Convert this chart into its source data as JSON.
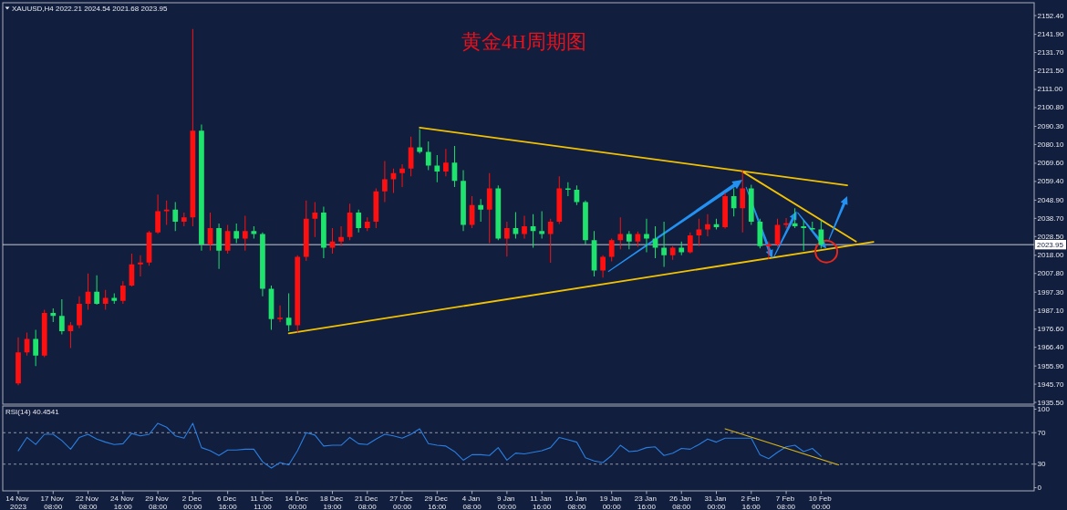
{
  "chart_data": [
    {
      "type": "candlestick",
      "title": "黄金4H周期图",
      "annotations": [
        "XAUUSD,H4 2022.21 2024.54 2021.68 2023.95"
      ],
      "categories": [
        null,
        null,
        null,
        null,
        null,
        null,
        null,
        null,
        null,
        null,
        null,
        null,
        null,
        null,
        null,
        null,
        null,
        null,
        null,
        null,
        null,
        null,
        null,
        null,
        null,
        null,
        null,
        null,
        null,
        null,
        null,
        null,
        null,
        null,
        null,
        null,
        null,
        null,
        null,
        null,
        null,
        null,
        null,
        null,
        null,
        null,
        null,
        null,
        null,
        null,
        null,
        null,
        null,
        null,
        null,
        null,
        null,
        null,
        null,
        null,
        null,
        null,
        null,
        null,
        null,
        null,
        null,
        null,
        null,
        null,
        null,
        null,
        null,
        null,
        null,
        null,
        null,
        null,
        null,
        null,
        null,
        null,
        null,
        null,
        null,
        null,
        null,
        null,
        null,
        null,
        null,
        null,
        null,
        null,
        null,
        null,
        null,
        null,
        null,
        null,
        null,
        null,
        null,
        null,
        null,
        null,
        null,
        null,
        null,
        null,
        null,
        null,
        null,
        null,
        null,
        null,
        null
      ],
      "ohlc": [
        [
          1946.2,
          1972.0,
          1945.1,
          1963.5
        ],
        [
          1963.5,
          1974.6,
          1961.8,
          1971.1
        ],
        [
          1971.1,
          1976.2,
          1955.8,
          1961.8
        ],
        [
          1961.8,
          1987.4,
          1960.9,
          1985.7
        ],
        [
          1985.7,
          1988.2,
          1980.5,
          1984.0
        ],
        [
          1984.0,
          1993.3,
          1973.7,
          1975.4
        ],
        [
          1975.4,
          1980.5,
          1965.9,
          1978.8
        ],
        [
          1978.8,
          1995.0,
          1977.1,
          1990.8
        ],
        [
          1990.8,
          2007.8,
          1987.4,
          1997.6
        ],
        [
          1997.6,
          2006.7,
          1990.3,
          1990.8
        ],
        [
          1990.8,
          1998.6,
          1987.4,
          1994.1
        ],
        [
          1994.1,
          1996.7,
          1990.8,
          1992.5
        ],
        [
          1992.5,
          2003.5,
          1990.8,
          2001.0
        ],
        [
          2001.0,
          2018.9,
          2000.5,
          2012.9
        ],
        [
          2012.9,
          2018.0,
          2006.1,
          2013.9
        ],
        [
          2013.9,
          2031.6,
          2012.1,
          2030.8
        ],
        [
          2030.8,
          2052.0,
          2030.0,
          2042.7
        ],
        [
          2042.7,
          2048.7,
          2035.0,
          2043.6
        ],
        [
          2043.6,
          2047.8,
          2031.6,
          2036.8
        ],
        [
          2036.8,
          2041.9,
          2034.2,
          2039.3
        ],
        [
          2039.3,
          2144.9,
          2034.2,
          2087.9
        ],
        [
          2087.9,
          2091.3,
          2020.6,
          2024.0
        ],
        [
          2024.0,
          2041.9,
          2020.6,
          2033.3
        ],
        [
          2033.3,
          2035.8,
          2010.3,
          2020.6
        ],
        [
          2020.6,
          2035.0,
          2018.9,
          2031.6
        ],
        [
          2031.6,
          2035.8,
          2024.8,
          2027.4
        ],
        [
          2027.4,
          2040.2,
          2020.6,
          2031.6
        ],
        [
          2031.6,
          2034.2,
          2027.4,
          2029.9
        ],
        [
          2029.9,
          2030.8,
          1995.0,
          1999.2
        ],
        [
          1999.2,
          2001.0,
          1976.2,
          1982.2
        ],
        [
          1982.2,
          1989.9,
          1980.5,
          1983.0
        ],
        [
          1983.0,
          1996.7,
          1975.4,
          1978.8
        ],
        [
          1978.8,
          2018.0,
          1974.5,
          2017.1
        ],
        [
          2017.1,
          2048.7,
          2014.8,
          2038.5
        ],
        [
          2038.5,
          2047.8,
          2028.2,
          2041.9
        ],
        [
          2041.9,
          2045.3,
          2016.3,
          2022.3
        ],
        [
          2022.3,
          2033.3,
          2018.9,
          2025.7
        ],
        [
          2025.7,
          2034.2,
          2023.1,
          2028.2
        ],
        [
          2028.2,
          2046.9,
          2026.5,
          2041.9
        ],
        [
          2041.9,
          2043.6,
          2030.8,
          2033.3
        ],
        [
          2033.3,
          2039.3,
          2031.6,
          2036.8
        ],
        [
          2036.8,
          2055.5,
          2033.3,
          2053.8
        ],
        [
          2053.8,
          2070.8,
          2047.8,
          2060.6
        ],
        [
          2060.6,
          2066.6,
          2052.9,
          2064.0
        ],
        [
          2064.0,
          2069.1,
          2056.3,
          2066.6
        ],
        [
          2066.6,
          2084.5,
          2062.3,
          2078.5
        ],
        [
          2078.5,
          2088.7,
          2075.1,
          2075.9
        ],
        [
          2075.9,
          2081.9,
          2065.7,
          2068.3
        ],
        [
          2068.3,
          2074.2,
          2058.9,
          2064.9
        ],
        [
          2064.9,
          2077.6,
          2062.3,
          2070.0
        ],
        [
          2070.0,
          2079.3,
          2056.3,
          2059.7
        ],
        [
          2059.7,
          2065.7,
          2031.6,
          2035.0
        ],
        [
          2035.0,
          2051.2,
          2033.3,
          2046.1
        ],
        [
          2046.1,
          2049.5,
          2036.8,
          2043.6
        ],
        [
          2043.6,
          2064.0,
          2024.8,
          2055.5
        ],
        [
          2055.5,
          2057.2,
          2026.5,
          2027.4
        ],
        [
          2027.4,
          2036.8,
          2017.2,
          2033.3
        ],
        [
          2033.3,
          2042.2,
          2027.4,
          2029.9
        ],
        [
          2029.9,
          2040.2,
          2027.4,
          2034.2
        ],
        [
          2034.2,
          2041.0,
          2022.3,
          2031.6
        ],
        [
          2031.6,
          2042.7,
          2027.4,
          2029.9
        ],
        [
          2029.9,
          2038.5,
          2013.8,
          2036.8
        ],
        [
          2036.8,
          2062.3,
          2035.5,
          2055.5
        ],
        [
          2055.5,
          2058.9,
          2051.2,
          2054.7
        ],
        [
          2054.7,
          2057.2,
          2046.1,
          2047.8
        ],
        [
          2047.8,
          2048.7,
          2024.0,
          2026.5
        ],
        [
          2026.5,
          2031.6,
          2006.1,
          2009.5
        ],
        [
          2009.5,
          2018.0,
          2005.5,
          2017.1
        ],
        [
          2017.1,
          2027.4,
          2014.6,
          2026.5
        ],
        [
          2026.5,
          2039.3,
          2021.4,
          2029.9
        ],
        [
          2029.9,
          2031.6,
          2021.4,
          2025.7
        ],
        [
          2025.7,
          2031.3,
          2022.7,
          2029.9
        ],
        [
          2029.9,
          2038.5,
          2019.7,
          2027.4
        ],
        [
          2027.4,
          2034.2,
          2016.3,
          2022.3
        ],
        [
          2022.3,
          2036.8,
          2011.5,
          2018.0
        ],
        [
          2018.0,
          2023.1,
          2015.4,
          2022.3
        ],
        [
          2022.3,
          2025.7,
          2018.0,
          2019.7
        ],
        [
          2019.7,
          2030.8,
          2019.0,
          2029.1
        ],
        [
          2029.1,
          2038.5,
          2023.1,
          2032.5
        ],
        [
          2032.5,
          2041.0,
          2028.6,
          2035.4
        ],
        [
          2035.4,
          2038.5,
          2032.5,
          2033.7
        ],
        [
          2033.7,
          2052.9,
          2033.0,
          2051.2
        ],
        [
          2051.2,
          2055.5,
          2039.8,
          2044.4
        ],
        [
          2044.4,
          2065.7,
          2030.8,
          2055.5
        ],
        [
          2055.5,
          2057.5,
          2035.0,
          2036.8
        ],
        [
          2036.8,
          2038.5,
          2021.8,
          2023.1
        ],
        [
          2023.1,
          2025.7,
          2015.9,
          2024.0
        ],
        [
          2024.0,
          2038.5,
          2022.7,
          2035.0
        ],
        [
          2035.0,
          2038.9,
          2033.0,
          2035.9
        ],
        [
          2035.9,
          2044.4,
          2033.3,
          2034.2
        ],
        [
          2034.2,
          2037.6,
          2020.6,
          2033.3
        ],
        [
          2033.3,
          2036.8,
          2032.0,
          2032.5
        ],
        [
          2032.5,
          2037.6,
          2021.7,
          2023.95
        ],
        null,
        null,
        null,
        null,
        null,
        null,
        null,
        null,
        null,
        null,
        null,
        null,
        null,
        null,
        null,
        null,
        null,
        null,
        null,
        null,
        null,
        null,
        null,
        null
      ],
      "colors": [
        "#ff1010",
        "#ff1010",
        "#1ee36c",
        "#ff1010",
        "#1ee36c",
        "#1ee36c",
        "#ff1010",
        "#ff1010",
        "#ff1010",
        "#1ee36c",
        "#ff1010",
        "#1ee36c",
        "#ff1010",
        "#ff1010",
        "#ff1010",
        "#ff1010",
        "#ff1010",
        "#ff1010",
        "#1ee36c",
        "#ff1010",
        "#ff1010",
        "#1ee36c",
        "#ff1010",
        "#1ee36c",
        "#ff1010",
        "#1ee36c",
        "#ff1010",
        "#1ee36c",
        "#1ee36c",
        "#1ee36c",
        "#ff1010",
        "#1ee36c",
        "#ff1010",
        "#ff1010",
        "#ff1010",
        "#1ee36c",
        "#ff1010",
        "#ff1010",
        "#ff1010",
        "#1ee36c",
        "#ff1010",
        "#ff1010",
        "#ff1010",
        "#ff1010",
        "#ff1010",
        "#ff1010",
        "#1ee36c",
        "#1ee36c",
        "#1ee36c",
        "#ff1010",
        "#1ee36c",
        "#1ee36c",
        "#ff1010",
        "#1ee36c",
        "#ff1010",
        "#1ee36c",
        "#ff1010",
        "#1ee36c",
        "#ff1010",
        "#1ee36c",
        "#1ee36c",
        "#ff1010",
        "#ff1010",
        "#1ee36c",
        "#1ee36c",
        "#1ee36c",
        "#1ee36c",
        "#ff1010",
        "#ff1010",
        "#ff1010",
        "#1ee36c",
        "#ff1010",
        "#1ee36c",
        "#1ee36c",
        "#1ee36c",
        "#ff1010",
        "#1ee36c",
        "#ff1010",
        "#ff1010",
        "#ff1010",
        "#1ee36c",
        "#ff1010",
        "#1ee36c",
        "#ff1010",
        "#1ee36c",
        "#1ee36c",
        "#ff1010",
        "#ff1010",
        "#ff1010",
        "#1ee36c",
        "#1ee36c",
        "#1ee36c",
        "#1ee36c",
        null,
        null,
        null,
        null,
        null,
        null,
        null,
        null,
        null,
        null,
        null,
        null,
        null,
        null,
        null,
        null,
        null,
        null,
        null,
        null,
        null,
        null,
        null,
        null
      ],
      "series": [
        {
          "type": "line",
          "color": "#f2c200",
          "values": [
            null,
            null,
            null,
            null,
            null,
            null,
            null,
            null,
            null,
            null,
            null,
            null,
            null,
            null,
            null,
            null,
            null,
            null,
            null,
            null,
            null,
            null,
            null,
            null,
            null,
            null,
            null,
            null,
            null,
            null,
            null,
            null,
            null,
            null,
            null,
            null,
            null,
            null,
            null,
            null,
            null,
            null,
            null,
            null,
            null,
            null,
            2089.6,
            null,
            null,
            null,
            null,
            null,
            null,
            null,
            null,
            null,
            null,
            null,
            null,
            null,
            null,
            null,
            null,
            null,
            null,
            null,
            null,
            null,
            null,
            null,
            null,
            null,
            null,
            null,
            null,
            null,
            null,
            null,
            null,
            null,
            null,
            null,
            null,
            null,
            null,
            null,
            null,
            null,
            null,
            null,
            null,
            null,
            null,
            null,
            null,
            2057.2,
            null,
            null,
            null,
            null,
            null,
            null,
            null,
            null,
            null,
            null,
            null,
            null,
            null,
            null,
            null,
            null,
            null,
            null,
            null,
            null,
            null
          ]
        },
        {
          "type": "line",
          "color": "#f2c200",
          "values": [
            null,
            null,
            null,
            null,
            null,
            null,
            null,
            null,
            null,
            null,
            null,
            null,
            null,
            null,
            null,
            null,
            null,
            null,
            null,
            null,
            null,
            null,
            null,
            null,
            null,
            null,
            null,
            null,
            null,
            null,
            null,
            1974.2,
            null,
            null,
            null,
            null,
            null,
            null,
            null,
            null,
            null,
            null,
            null,
            null,
            null,
            null,
            null,
            null,
            null,
            null,
            null,
            null,
            null,
            null,
            null,
            null,
            null,
            null,
            null,
            null,
            null,
            null,
            null,
            null,
            null,
            null,
            null,
            null,
            null,
            null,
            null,
            null,
            null,
            null,
            null,
            null,
            null,
            null,
            null,
            null,
            null,
            null,
            null,
            null,
            null,
            null,
            null,
            null,
            null,
            null,
            null,
            null,
            null,
            null,
            null,
            null,
            null,
            null,
            2025.5,
            null,
            null,
            null,
            null,
            null,
            null,
            null,
            null,
            null,
            null,
            null,
            null,
            null,
            null,
            null,
            null,
            null,
            null
          ]
        },
        {
          "type": "line",
          "color": "#f2c200",
          "values": [
            null,
            null,
            null,
            null,
            null,
            null,
            null,
            null,
            null,
            null,
            null,
            null,
            null,
            null,
            null,
            null,
            null,
            null,
            null,
            null,
            null,
            null,
            null,
            null,
            null,
            null,
            null,
            null,
            null,
            null,
            null,
            null,
            null,
            null,
            null,
            null,
            null,
            null,
            null,
            null,
            null,
            null,
            null,
            null,
            null,
            null,
            null,
            null,
            null,
            null,
            null,
            null,
            null,
            null,
            null,
            null,
            null,
            null,
            null,
            null,
            null,
            null,
            null,
            null,
            null,
            null,
            null,
            null,
            null,
            null,
            null,
            null,
            null,
            null,
            null,
            null,
            null,
            null,
            null,
            null,
            null,
            null,
            null,
            2064.9,
            null,
            null,
            null,
            null,
            null,
            null,
            null,
            null,
            null,
            null,
            null,
            null,
            2025.7,
            null,
            null,
            null,
            null,
            null,
            null,
            null,
            null,
            null,
            null,
            null,
            null,
            null,
            null,
            null,
            null,
            null,
            null,
            null,
            null
          ]
        }
      ],
      "ylim": [
        1934.5,
        2159.6
      ],
      "yticks": [
        {
          "value": 1935.5,
          "label": "1935.50"
        },
        {
          "value": 1945.7,
          "label": "1945.70"
        },
        {
          "value": 1955.9,
          "label": "1955.90"
        },
        {
          "value": 1966.4,
          "label": "1966.40"
        },
        {
          "value": 1976.6,
          "label": "1976.60"
        },
        {
          "value": 1987.1,
          "label": "1987.10"
        },
        {
          "value": 1997.3,
          "label": "1997.30"
        },
        {
          "value": 2007.8,
          "label": "2007.80"
        },
        {
          "value": 2018,
          "label": "2018.00"
        },
        {
          "value": 2028.5,
          "label": "2028.50"
        },
        {
          "value": 2038.7,
          "label": "2038.70"
        },
        {
          "value": 2048.9,
          "label": "2048.90"
        },
        {
          "value": 2059.4,
          "label": "2059.40"
        },
        {
          "value": 2069.6,
          "label": "2069.60"
        },
        {
          "value": 2080.1,
          "label": "2080.10"
        },
        {
          "value": 2090.3,
          "label": "2090.30"
        },
        {
          "value": 2100.8,
          "label": "2100.80"
        },
        {
          "value": 2111,
          "label": "2111.00"
        },
        {
          "value": 2121.5,
          "label": "2121.50"
        },
        {
          "value": 2131.7,
          "label": "2131.70"
        },
        {
          "value": 2141.9,
          "label": "2141.90"
        },
        {
          "value": 2152.4,
          "label": "2152.40"
        }
      ],
      "ref_lines": [
        {
          "axis": "y",
          "value": 2023.95,
          "label": "2023.95",
          "color": "#c8ccd6"
        }
      ],
      "tick_labels": "y"
    },
    {
      "type": "line",
      "annotations": [
        "RSI(14) 40.4541"
      ],
      "categories": [
        "14 Nov 2023",
        null,
        null,
        null,
        "17 Nov 08:00",
        null,
        null,
        null,
        "22 Nov 08:00",
        null,
        null,
        null,
        "24 Nov 16:00",
        null,
        null,
        null,
        "29 Nov 08:00",
        null,
        null,
        null,
        "2 Dec 00:00",
        null,
        null,
        null,
        "6 Dec 16:00",
        null,
        null,
        null,
        "11 Dec 11:00",
        null,
        null,
        null,
        "14 Dec 00:00",
        null,
        null,
        null,
        "18 Dec 19:00",
        null,
        null,
        null,
        "21 Dec 08:00",
        null,
        null,
        null,
        "27 Dec 00:00",
        null,
        null,
        null,
        "29 Dec 16:00",
        null,
        null,
        null,
        "4 Jan 08:00",
        null,
        null,
        null,
        "9 Jan 00:00",
        null,
        null,
        null,
        "11 Jan 16:00",
        null,
        null,
        null,
        "16 Jan 08:00",
        null,
        null,
        null,
        "19 Jan 00:00",
        null,
        null,
        null,
        "23 Jan 16:00",
        null,
        null,
        null,
        "26 Jan 08:00",
        null,
        null,
        null,
        "31 Jan 00:00",
        null,
        null,
        null,
        "2 Feb 16:00",
        null,
        null,
        null,
        "7 Feb 08:00",
        null,
        null,
        null,
        "10 Feb 00:00",
        null,
        null,
        null,
        null,
        null,
        null,
        null,
        null,
        null,
        null,
        null,
        null,
        null,
        null,
        null,
        null,
        null,
        null,
        null,
        null,
        null,
        null,
        null,
        null
      ],
      "series": [
        {
          "color": "#2a7ee0",
          "values": [
            47,
            64,
            55,
            68,
            68,
            60,
            49,
            64,
            68,
            62,
            58,
            55,
            56,
            69,
            66,
            68,
            82,
            77,
            66,
            63,
            82,
            51,
            47,
            41,
            48,
            48,
            49,
            49,
            33,
            25,
            32,
            29,
            47,
            70,
            67,
            53,
            54,
            54,
            64,
            56,
            55,
            62,
            68,
            66,
            63,
            68,
            75,
            56,
            54,
            53,
            46,
            35,
            42,
            42,
            41,
            51,
            35,
            44,
            43,
            45,
            47,
            51,
            64,
            61,
            58,
            38,
            34,
            32,
            41,
            54,
            46,
            47,
            51,
            52,
            41,
            44,
            50,
            49,
            55,
            62,
            58,
            63,
            63,
            63,
            63,
            42,
            37,
            45,
            52,
            54,
            46,
            50,
            40,
            null,
            null,
            null,
            null,
            null,
            null,
            null,
            null,
            null,
            null,
            null,
            null,
            null,
            null,
            null,
            null,
            null,
            null,
            null,
            null,
            null,
            null,
            null,
            null
          ]
        },
        {
          "color": "#d4b21a",
          "values": [
            null,
            null,
            null,
            null,
            null,
            null,
            null,
            null,
            null,
            null,
            null,
            null,
            null,
            null,
            null,
            null,
            null,
            null,
            null,
            null,
            null,
            null,
            null,
            null,
            null,
            null,
            null,
            null,
            null,
            null,
            null,
            null,
            null,
            null,
            null,
            null,
            null,
            null,
            null,
            null,
            null,
            null,
            null,
            null,
            null,
            null,
            null,
            null,
            null,
            null,
            null,
            null,
            null,
            null,
            null,
            null,
            null,
            null,
            null,
            null,
            null,
            null,
            null,
            null,
            null,
            null,
            null,
            null,
            null,
            null,
            null,
            null,
            null,
            null,
            null,
            null,
            null,
            null,
            null,
            null,
            null,
            75,
            null,
            null,
            null,
            null,
            null,
            null,
            null,
            null,
            null,
            null,
            null,
            null,
            29,
            null,
            null,
            null,
            null,
            null,
            null,
            null,
            null,
            null,
            null,
            null,
            null,
            null,
            null,
            null,
            null,
            null,
            null,
            null,
            null,
            null,
            null
          ]
        }
      ],
      "ylim": [
        -4,
        104
      ],
      "yticks": [
        0,
        30,
        70,
        100
      ],
      "ref_lines": [
        {
          "axis": "y",
          "value": 70,
          "color": "#8f96a8",
          "line_style": "dashed"
        },
        {
          "axis": "y",
          "value": 30,
          "color": "#8f96a8",
          "line_style": "dashed"
        }
      ]
    }
  ]
}
